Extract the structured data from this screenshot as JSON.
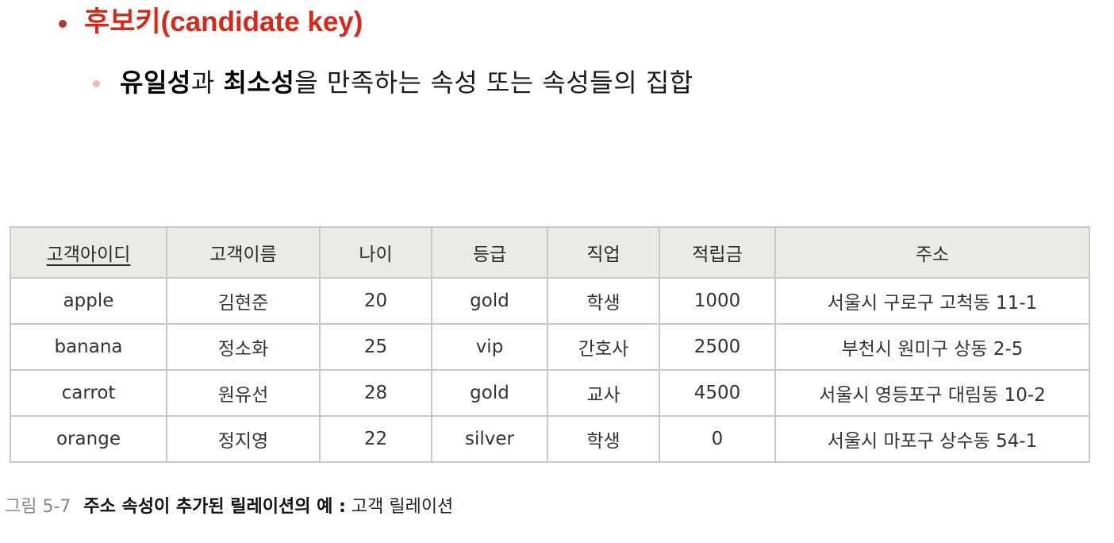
{
  "heading": {
    "text": "후보키(candidate key)",
    "color": "#d42a1c"
  },
  "definition": {
    "bold1": "유일성",
    "mid1": "과 ",
    "bold2": "최소성",
    "rest": "을 만족하는 속성 또는 속성들의 집합"
  },
  "table": {
    "columns": [
      "고객아이디",
      "고객이름",
      "나이",
      "등급",
      "직업",
      "적립금",
      "주소"
    ],
    "rows": [
      [
        "apple",
        "김현준",
        "20",
        "gold",
        "학생",
        "1000",
        "서울시 구로구 고척동 11-1"
      ],
      [
        "banana",
        "정소화",
        "25",
        "vip",
        "간호사",
        "2500",
        "부천시 원미구 상동 2-5"
      ],
      [
        "carrot",
        "원유선",
        "28",
        "gold",
        "교사",
        "4500",
        "서울시 영등포구 대림동 10-2"
      ],
      [
        "orange",
        "정지영",
        "22",
        "silver",
        "학생",
        "0",
        "서울시 마포구 상수동 54-1"
      ]
    ]
  },
  "caption": {
    "label": "그림 5-7",
    "bold": "주소 속성이 추가된 릴레이션의 예 :",
    "rest": " 고객 릴레이션"
  }
}
